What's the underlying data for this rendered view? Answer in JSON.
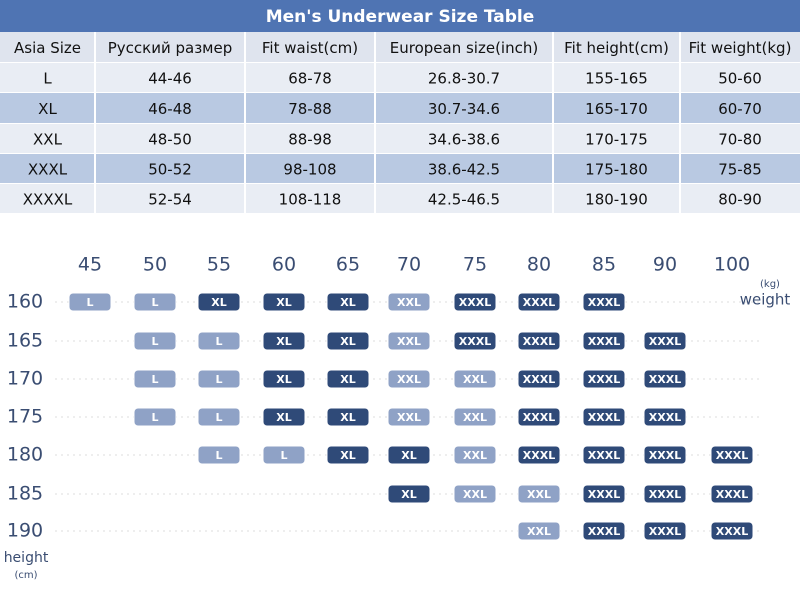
{
  "table": {
    "title": "Men's Underwear Size Table",
    "header": [
      "Asia Size",
      "Русский размер",
      "Fit waist(cm)",
      "European size(inch)",
      "Fit height(cm)",
      "Fit weight(kg)"
    ],
    "rows": [
      [
        "L",
        "44-46",
        "68-78",
        "26.8-30.7",
        "155-165",
        "50-60"
      ],
      [
        "XL",
        "46-48",
        "78-88",
        "30.7-34.6",
        "165-170",
        "60-70"
      ],
      [
        "XXL",
        "48-50",
        "88-98",
        "34.6-38.6",
        "170-175",
        "70-80"
      ],
      [
        "XXXL",
        "50-52",
        "98-108",
        "38.6-42.5",
        "175-180",
        "75-85"
      ],
      [
        "XXXXL",
        "52-54",
        "108-118",
        "42.5-46.5",
        "180-190",
        "80-90"
      ]
    ]
  },
  "grid": {
    "weights": [
      "45",
      "50",
      "55",
      "60",
      "65",
      "70",
      "75",
      "80",
      "85",
      "90",
      "100"
    ],
    "heights": [
      "160",
      "165",
      "170",
      "175",
      "180",
      "185",
      "190"
    ],
    "weight_unit": "(kg)",
    "weight_label": "weight",
    "height_label": "height",
    "height_unit": "(cm)",
    "size_colors": {
      "L": "#8fa2c6",
      "XL": "#2f4a78",
      "XXL": "#8fa2c6",
      "XXXL": "#2f4a78"
    },
    "cells": [
      [
        "L",
        "L",
        "XL",
        "XL",
        "XL",
        "XXL",
        "XXXL",
        "XXXL",
        "XXXL",
        null,
        null
      ],
      [
        null,
        "L",
        "L",
        "XL",
        "XL",
        "XXL",
        "XXXL",
        "XXXL",
        "XXXL",
        "XXXL",
        null
      ],
      [
        null,
        "L",
        "L",
        "XL",
        "XL",
        "XXL",
        "XXL",
        "XXXL",
        "XXXL",
        "XXXL",
        null
      ],
      [
        null,
        "L",
        "L",
        "XL",
        "XL",
        "XXL",
        "XXL",
        "XXXL",
        "XXXL",
        "XXXL",
        null
      ],
      [
        null,
        null,
        "L",
        "L",
        "XL",
        "XL",
        "XXL",
        "XXXL",
        "XXXL",
        "XXXL",
        "XXXL"
      ],
      [
        null,
        null,
        null,
        null,
        null,
        "XL",
        "XXL",
        "XXL",
        "XXXL",
        "XXXL",
        "XXXL"
      ],
      [
        null,
        null,
        null,
        null,
        null,
        null,
        null,
        "XXL",
        "XXXL",
        "XXXL",
        "XXXL"
      ]
    ]
  }
}
